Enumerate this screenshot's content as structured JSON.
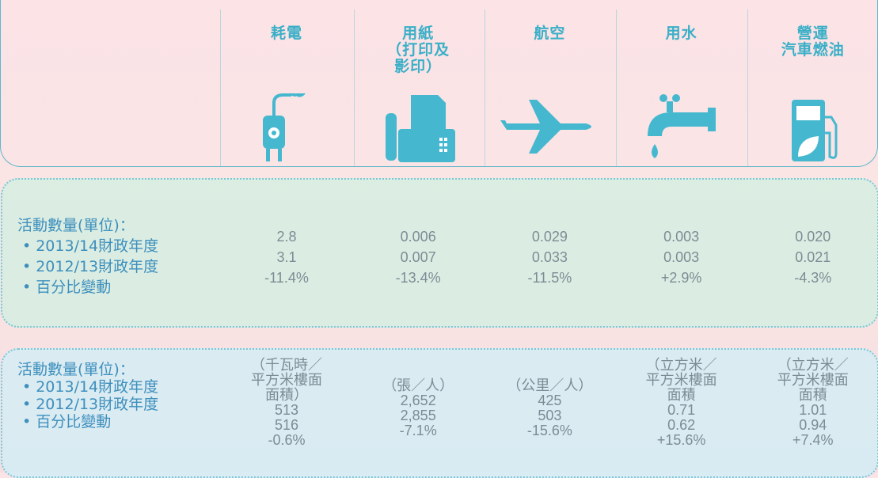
{
  "header": {
    "columns": [
      {
        "title": [
          "耗電"
        ]
      },
      {
        "title": [
          "用紙",
          "（打印及",
          "影印）"
        ]
      },
      {
        "title": [
          "航空"
        ]
      },
      {
        "title": [
          "用水"
        ]
      },
      {
        "title": [
          "營運",
          "汽車燃油"
        ]
      }
    ]
  },
  "sections": [
    {
      "heading": "活動數量(單位)：",
      "items": [
        "2013/14財政年度",
        "2012/13財政年度",
        "百分比變動"
      ],
      "columns": [
        {
          "lines": [
            "2.8",
            "3.1",
            "-11.4%"
          ]
        },
        {
          "lines": [
            "0.006",
            "0.007",
            "-13.4%"
          ]
        },
        {
          "lines": [
            "0.029",
            "0.033",
            "-11.5%"
          ]
        },
        {
          "lines": [
            "0.003",
            "0.003",
            "+2.9%"
          ]
        },
        {
          "lines": [
            "0.020",
            "0.021",
            "-4.3%"
          ]
        }
      ]
    },
    {
      "heading": "活動數量(單位)：",
      "items": [
        "2013/14財政年度",
        "2012/13財政年度",
        "百分比變動"
      ],
      "columns": [
        {
          "lines": [
            "（千瓦時／",
            "平方米樓面",
            "面積）",
            "513",
            "516",
            "-0.6%"
          ]
        },
        {
          "lines": [
            "（張／人）",
            "2,652",
            "2,855",
            "-7.1%"
          ]
        },
        {
          "lines": [
            "（公里／人）",
            "425",
            "503",
            "-15.6%"
          ]
        },
        {
          "lines": [
            "（立方米／",
            "平方米樓面",
            "面積",
            "0.71",
            "0.62",
            "+15.6%"
          ]
        },
        {
          "lines": [
            "（立方米／",
            "平方米樓面",
            "面積",
            "1.01",
            "0.94",
            "+7.4%"
          ]
        }
      ]
    }
  ]
}
